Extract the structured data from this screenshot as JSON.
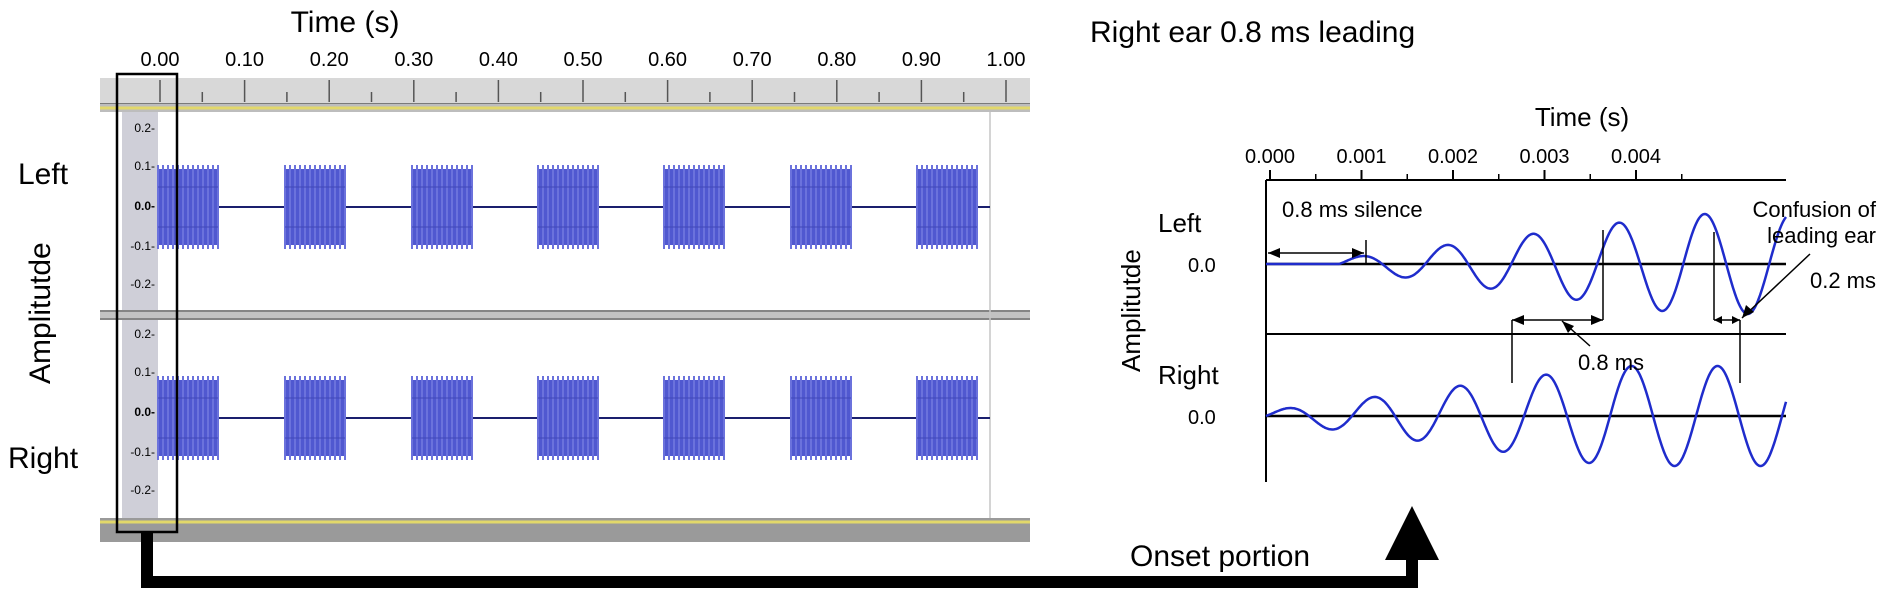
{
  "left_panel": {
    "time_axis_label": "Time (s)",
    "time_ticks": [
      "0.00",
      "0.10",
      "0.20",
      "0.30",
      "0.40",
      "0.50",
      "0.60",
      "0.70",
      "0.80",
      "0.90",
      "1.00"
    ],
    "channel_labels": {
      "left": "Left",
      "right": "Right"
    },
    "amplitude_label": "Amplitutde",
    "amplitude_ticks": [
      "0.2-",
      "0.1-",
      "0.0-",
      "-0.1-",
      "-0.2-"
    ],
    "burst_count": 7,
    "waveform_color": "#5058d0",
    "selection_note": ""
  },
  "right_panel": {
    "title": "Right ear 0.8 ms leading",
    "time_axis_label": "Time (s)",
    "time_ticks": [
      "0.000",
      "0.001",
      "0.002",
      "0.003",
      "0.004"
    ],
    "channel_labels": {
      "left": "Left",
      "right": "Right"
    },
    "amplitude_label": "Amplitutde",
    "zero_label": "0.0",
    "annotations": {
      "silence": "0.8 ms silence",
      "confusion_line1": "Confusion of",
      "confusion_line2": "leading ear",
      "gap_small": "0.2 ms",
      "gap_lead": "0.8 ms"
    },
    "wave_color": "#1f2ccc"
  },
  "arrow_label": "Onset portion"
}
